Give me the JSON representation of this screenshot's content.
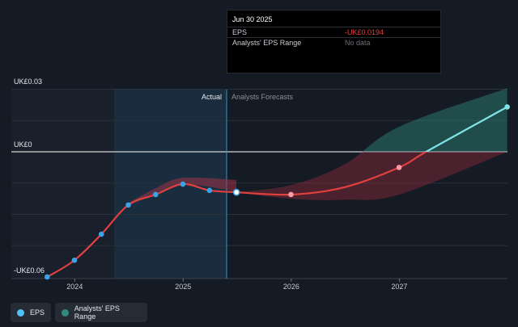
{
  "chart_data": {
    "type": "line",
    "title": "",
    "xlabel": "",
    "ylabel": "",
    "x_ticks": [
      "2024",
      "2025",
      "2026",
      "2027"
    ],
    "y_labels": [
      "UK£0.03",
      "UK£0",
      "-UK£0.06"
    ],
    "ylim": [
      -0.06,
      0.03
    ],
    "sections": {
      "actual": "Actual",
      "forecast": "Analysts Forecasts"
    },
    "series": [
      {
        "name": "EPS",
        "color": "#e0413e",
        "points": [
          {
            "x": "2023-09-30",
            "y": -0.06
          },
          {
            "x": "2023-12-31",
            "y": -0.052
          },
          {
            "x": "2024-03-31",
            "y": -0.0395
          },
          {
            "x": "2024-06-30",
            "y": -0.0255
          },
          {
            "x": "2024-09-30",
            "y": -0.0205
          },
          {
            "x": "2024-12-31",
            "y": -0.0155
          },
          {
            "x": "2025-03-31",
            "y": -0.0185
          },
          {
            "x": "2025-06-30",
            "y": -0.0194
          }
        ]
      },
      {
        "name": "Analysts Forecasts EPS",
        "color": "#e0413e",
        "points": [
          {
            "x": "2025-06-30",
            "y": -0.0194
          },
          {
            "x": "2025-12-31",
            "y": -0.0205
          },
          {
            "x": "2026-06-30",
            "y": -0.017
          },
          {
            "x": "2026-12-31",
            "y": -0.0075
          },
          {
            "x": "2027-04-01",
            "y": 0.0
          },
          {
            "x": "2027-12-31",
            "y": 0.0215
          }
        ]
      },
      {
        "name": "Analysts' EPS Range",
        "color": "#2e8a7c",
        "upper": [
          {
            "x": "2025-06-30",
            "y": -0.0194
          },
          {
            "x": "2025-12-31",
            "y": -0.016
          },
          {
            "x": "2026-06-30",
            "y": -0.006
          },
          {
            "x": "2026-12-31",
            "y": 0.012
          },
          {
            "x": "2027-12-31",
            "y": 0.0305
          }
        ],
        "lower": [
          {
            "x": "2025-06-30",
            "y": -0.0194
          },
          {
            "x": "2025-12-31",
            "y": -0.0225
          },
          {
            "x": "2026-06-30",
            "y": -0.023
          },
          {
            "x": "2026-12-31",
            "y": -0.0205
          },
          {
            "x": "2027-12-31",
            "y": 0.0
          }
        ]
      },
      {
        "name": "Past Estimates Range",
        "upper": [
          {
            "x": "2024-06-30",
            "y": -0.0245
          },
          {
            "x": "2024-09-30",
            "y": -0.0175
          },
          {
            "x": "2024-12-31",
            "y": -0.0125
          },
          {
            "x": "2025-06-30",
            "y": -0.0135
          }
        ],
        "lower": [
          {
            "x": "2024-06-30",
            "y": -0.0255
          },
          {
            "x": "2024-09-30",
            "y": -0.0205
          },
          {
            "x": "2024-12-31",
            "y": -0.0155
          },
          {
            "x": "2025-06-30",
            "y": -0.019
          }
        ]
      }
    ],
    "grid": true,
    "legend_position": "bottom-left"
  },
  "tooltip": {
    "date": "Jun 30 2025",
    "rows": [
      {
        "label": "EPS",
        "value": "-UK£0.0194",
        "color": "#e0413e"
      },
      {
        "label": "Analysts' EPS Range",
        "value": "No data",
        "color": "#6b7078"
      }
    ]
  },
  "legend": {
    "eps": {
      "label": "EPS",
      "icon": "eps-dot-icon",
      "color": "#4fc3f7"
    },
    "range": {
      "label": "Analysts' EPS Range",
      "icon": "range-dot-icon",
      "color": "#2e8a7c"
    }
  },
  "colors": {
    "background": "#151b24",
    "actual_band": "#1c3448",
    "forecast_line_positive": "#7fe3e6",
    "marker": "#3ba3e8"
  }
}
